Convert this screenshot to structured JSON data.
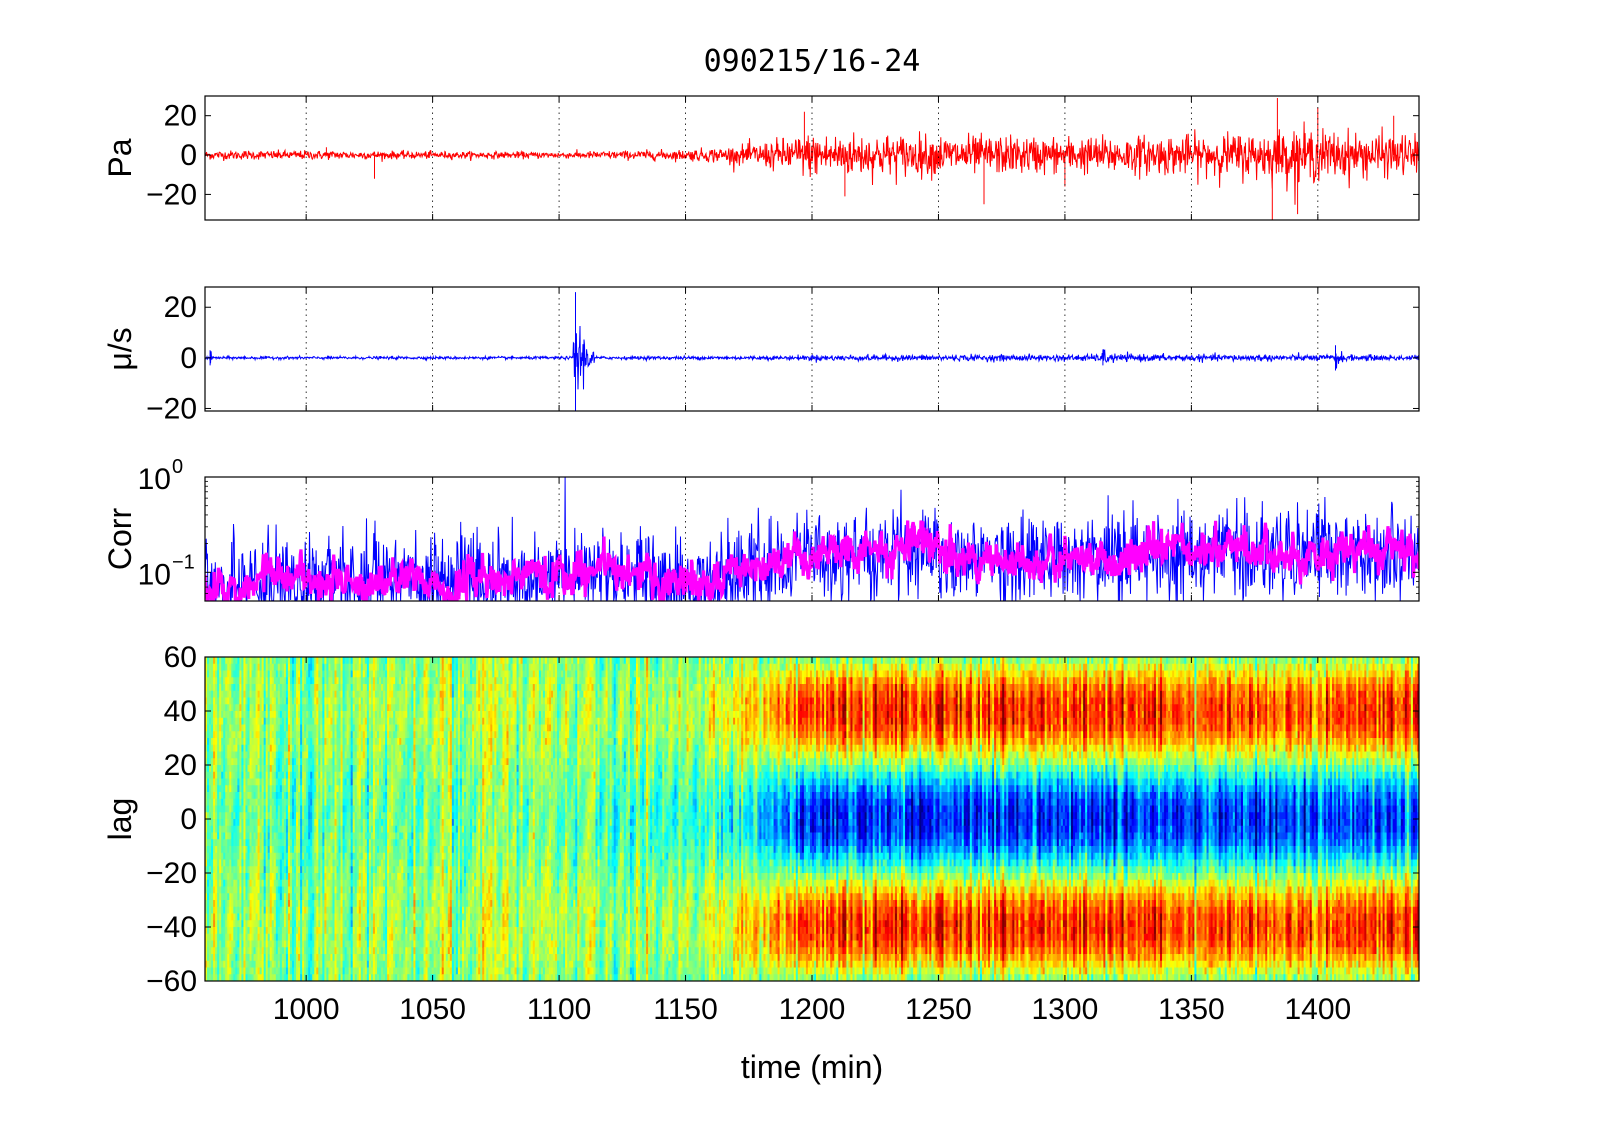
{
  "chart_data": [
    {
      "type": "line",
      "panel": "pressure",
      "title": "090215/16-24",
      "ylabel": "Pa",
      "xlim": [
        960,
        1440
      ],
      "ylim": [
        -33,
        30
      ],
      "xticks": [
        1000,
        1050,
        1100,
        1150,
        1200,
        1250,
        1300,
        1350,
        1400
      ],
      "yticks": [
        20,
        0,
        -20
      ],
      "ytick_labels": [
        "20",
        "0",
        "−20"
      ],
      "grid": "vertical dotted",
      "series": [
        {
          "color": "#ff0000",
          "envelope_x": [
            960,
            1000,
            1050,
            1100,
            1150,
            1170,
            1180,
            1195,
            1200,
            1220,
            1250,
            1300,
            1350,
            1380,
            1390,
            1420,
            1440
          ],
          "envelope_amp": [
            2.5,
            2.5,
            2,
            1.8,
            3,
            5,
            7,
            11,
            12,
            12,
            11,
            10,
            11,
            13,
            15,
            12,
            11
          ],
          "spikes_x": [
            1008,
            1027,
            1197,
            1213,
            1268,
            1300,
            1382,
            1384,
            1392,
            1400,
            1430
          ],
          "spikes_amp": [
            4,
            -12,
            22,
            -21,
            -25,
            -16,
            -33,
            29,
            -30,
            24,
            20
          ]
        }
      ]
    },
    {
      "type": "line",
      "panel": "velocity",
      "ylabel": "μ/s",
      "xlim": [
        960,
        1440
      ],
      "ylim": [
        -21,
        28
      ],
      "xticks": [
        1000,
        1050,
        1100,
        1150,
        1200,
        1250,
        1300,
        1350,
        1400
      ],
      "yticks": [
        20,
        0,
        -20
      ],
      "ytick_labels": [
        "20",
        "0",
        "−20"
      ],
      "grid": "vertical dotted",
      "series": [
        {
          "color": "#0000ff",
          "base_amp": 0.8,
          "envelope_x": [
            960,
            1100,
            1190,
            1200,
            1300,
            1320,
            1440
          ],
          "envelope_amp": [
            0.8,
            0.8,
            1.1,
            1.6,
            1.8,
            2.0,
            1.6
          ],
          "bursts": [
            {
              "x": 1106.5,
              "amp": 26,
              "width": 3
            },
            {
              "x": 1315,
              "amp": 3,
              "width": 2
            },
            {
              "x": 1407,
              "amp": 5,
              "width": 1.5
            },
            {
              "x": 962,
              "amp": 3,
              "width": 0.5
            }
          ]
        }
      ]
    },
    {
      "type": "line",
      "panel": "correlation",
      "ylabel": "Corr",
      "yscale": "log",
      "xlim": [
        960,
        1440
      ],
      "ylim": [
        0.05,
        1
      ],
      "xticks": [
        1000,
        1050,
        1100,
        1150,
        1200,
        1250,
        1300,
        1350,
        1400
      ],
      "yticks": [
        1,
        0.1
      ],
      "ytick_labels": [
        {
          "base": "10",
          "exp": "0"
        },
        {
          "base": "10",
          "exp": "−1"
        }
      ],
      "grid": "vertical dotted",
      "series": [
        {
          "color": "#0000ff",
          "trend_x": [
            960,
            1000,
            1050,
            1100,
            1106,
            1150,
            1200,
            1250,
            1300,
            1350,
            1380,
            1440
          ],
          "trend_y": [
            0.075,
            0.085,
            0.08,
            0.085,
            0.11,
            0.07,
            0.16,
            0.15,
            0.14,
            0.15,
            0.17,
            0.15
          ]
        },
        {
          "color": "#ff00ff",
          "trend_x": [
            960,
            1000,
            1050,
            1100,
            1106,
            1150,
            1200,
            1250,
            1300,
            1350,
            1380,
            1440
          ],
          "trend_y": [
            0.075,
            0.085,
            0.08,
            0.085,
            0.11,
            0.07,
            0.16,
            0.15,
            0.14,
            0.15,
            0.17,
            0.15
          ]
        }
      ]
    },
    {
      "type": "heatmap",
      "panel": "lag",
      "ylabel": "lag",
      "xlabel": "time (min)",
      "xlim": [
        960,
        1440
      ],
      "ylim": [
        -60,
        60
      ],
      "xticks": [
        1000,
        1050,
        1100,
        1150,
        1200,
        1250,
        1300,
        1350,
        1400
      ],
      "yticks": [
        60,
        40,
        20,
        0,
        -20,
        -40,
        -60
      ],
      "ytick_labels": [
        "60",
        "40",
        "20",
        "0",
        "−20",
        "−40",
        "−60"
      ],
      "colormap": "jet",
      "pattern": {
        "strength_x": [
          960,
          1100,
          1150,
          1170,
          1185,
          1198,
          1440
        ],
        "strength": [
          0.08,
          0.1,
          0.15,
          0.35,
          0.6,
          0.95,
          0.9
        ],
        "center_lag_min": 0,
        "side_band_lags": [
          40,
          -40
        ]
      }
    }
  ]
}
